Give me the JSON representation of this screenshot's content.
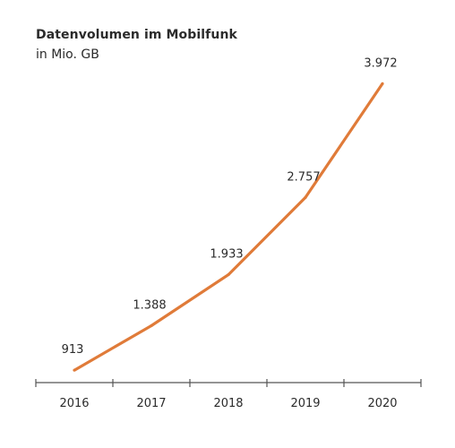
{
  "chart_data": {
    "type": "line",
    "title": "Datenvolumen im Mobilfunk",
    "subtitle": "in Mio. GB",
    "categories": [
      "2016",
      "2017",
      "2018",
      "2019",
      "2020"
    ],
    "values": [
      913,
      1388,
      1933,
      2757,
      3972
    ],
    "data_labels": [
      "913",
      "1.388",
      "1.933",
      "2.757",
      "3.972"
    ],
    "ylim": [
      800,
      4100
    ],
    "grid": false,
    "legend": "none",
    "line_color": "#e07b39",
    "axis_color": "#555555"
  }
}
